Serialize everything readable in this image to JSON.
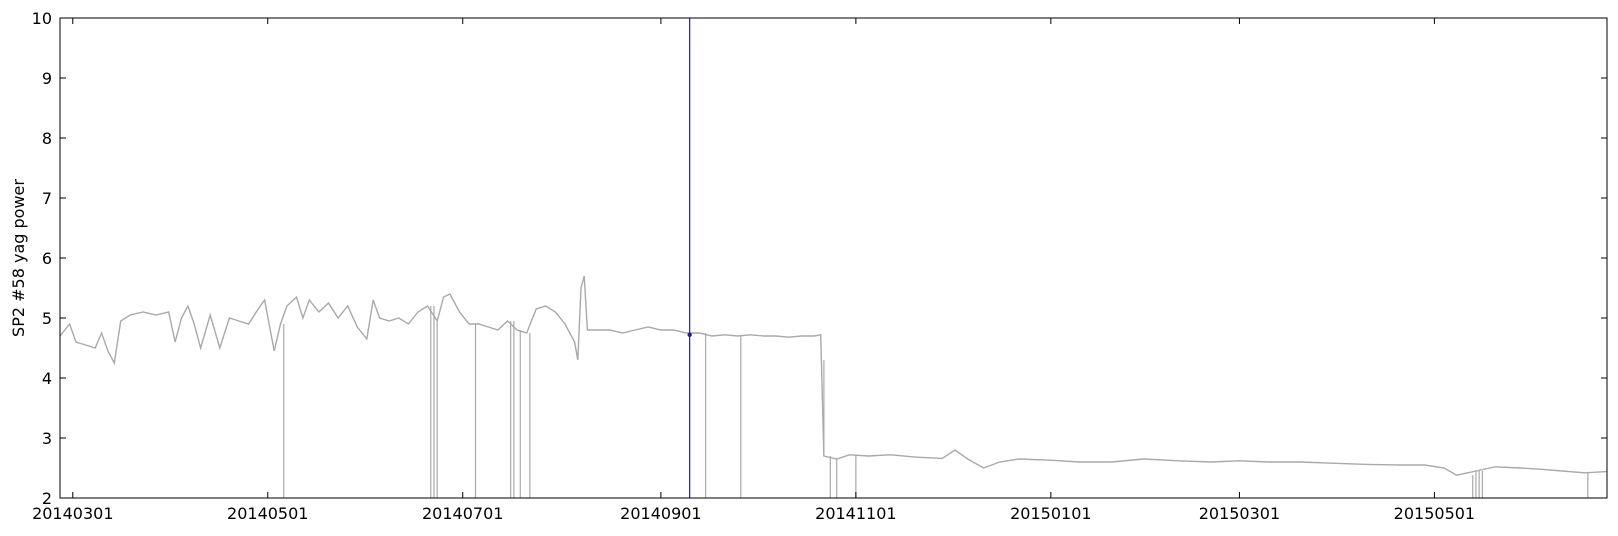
{
  "chart_data": {
    "type": "line",
    "title": "",
    "xlabel": "",
    "ylabel": "SP2 #58 yag power",
    "x_ticks": [
      "20140301",
      "20140501",
      "20140701",
      "20140901",
      "20141101",
      "20150101",
      "20150301",
      "20150501"
    ],
    "xlim": [
      "2014-02-25",
      "2015-06-24"
    ],
    "ylim": [
      2,
      10
    ],
    "y_ticks": [
      2,
      3,
      4,
      5,
      6,
      7,
      8,
      9,
      10
    ],
    "grid": false,
    "series_color": "#a9a9a9",
    "marker_color": "#1f1f9a",
    "series": [
      {
        "values_approx": [
          [
            "2014-02-25",
            4.7
          ],
          [
            "2014-02-28",
            4.9
          ],
          [
            "2014-03-02",
            4.6
          ],
          [
            "2014-03-05",
            4.55
          ],
          [
            "2014-03-08",
            4.5
          ],
          [
            "2014-03-10",
            4.75
          ],
          [
            "2014-03-12",
            4.45
          ],
          [
            "2014-03-14",
            4.25
          ],
          [
            "2014-03-16",
            4.95
          ],
          [
            "2014-03-19",
            5.05
          ],
          [
            "2014-03-23",
            5.1
          ],
          [
            "2014-03-27",
            5.05
          ],
          [
            "2014-03-31",
            5.1
          ],
          [
            "2014-04-02",
            4.6
          ],
          [
            "2014-04-04",
            5.0
          ],
          [
            "2014-04-06",
            5.2
          ],
          [
            "2014-04-08",
            4.9
          ],
          [
            "2014-04-10",
            4.5
          ],
          [
            "2014-04-13",
            5.05
          ],
          [
            "2014-04-16",
            4.5
          ],
          [
            "2014-04-19",
            5.0
          ],
          [
            "2014-04-22",
            4.95
          ],
          [
            "2014-04-25",
            4.9
          ],
          [
            "2014-04-28",
            5.15
          ],
          [
            "2014-04-30",
            5.3
          ],
          [
            "2014-05-03",
            4.45
          ],
          [
            "2014-05-05",
            4.9
          ],
          [
            "2014-05-07",
            5.2
          ],
          [
            "2014-05-10",
            5.35
          ],
          [
            "2014-05-12",
            5.0
          ],
          [
            "2014-05-14",
            5.3
          ],
          [
            "2014-05-17",
            5.1
          ],
          [
            "2014-05-20",
            5.25
          ],
          [
            "2014-05-23",
            5.0
          ],
          [
            "2014-05-26",
            5.2
          ],
          [
            "2014-05-29",
            4.85
          ],
          [
            "2014-06-01",
            4.65
          ],
          [
            "2014-06-03",
            5.3
          ],
          [
            "2014-06-05",
            5.0
          ],
          [
            "2014-06-08",
            4.95
          ],
          [
            "2014-06-11",
            5.0
          ],
          [
            "2014-06-14",
            4.9
          ],
          [
            "2014-06-17",
            5.1
          ],
          [
            "2014-06-20",
            5.2
          ],
          [
            "2014-06-23",
            4.95
          ],
          [
            "2014-06-25",
            5.35
          ],
          [
            "2014-06-27",
            5.4
          ],
          [
            "2014-06-30",
            5.1
          ],
          [
            "2014-07-03",
            4.9
          ],
          [
            "2014-07-06",
            4.9
          ],
          [
            "2014-07-09",
            4.85
          ],
          [
            "2014-07-12",
            4.8
          ],
          [
            "2014-07-15",
            4.95
          ],
          [
            "2014-07-18",
            4.8
          ],
          [
            "2014-07-21",
            4.75
          ],
          [
            "2014-07-24",
            5.15
          ],
          [
            "2014-07-27",
            5.2
          ],
          [
            "2014-07-30",
            5.1
          ],
          [
            "2014-08-02",
            4.9
          ],
          [
            "2014-08-05",
            4.6
          ],
          [
            "2014-08-06",
            4.3
          ],
          [
            "2014-08-07",
            5.5
          ],
          [
            "2014-08-08",
            5.7
          ],
          [
            "2014-08-09",
            4.8
          ],
          [
            "2014-08-12",
            4.8
          ],
          [
            "2014-08-16",
            4.8
          ],
          [
            "2014-08-20",
            4.75
          ],
          [
            "2014-08-24",
            4.8
          ],
          [
            "2014-08-28",
            4.85
          ],
          [
            "2014-09-01",
            4.8
          ],
          [
            "2014-09-05",
            4.8
          ],
          [
            "2014-09-09",
            4.75
          ],
          [
            "2014-09-13",
            4.75
          ],
          [
            "2014-09-17",
            4.7
          ],
          [
            "2014-09-21",
            4.72
          ],
          [
            "2014-09-25",
            4.7
          ],
          [
            "2014-09-29",
            4.72
          ],
          [
            "2014-10-03",
            4.7
          ],
          [
            "2014-10-07",
            4.7
          ],
          [
            "2014-10-11",
            4.68
          ],
          [
            "2014-10-15",
            4.7
          ],
          [
            "2014-10-19",
            4.7
          ],
          [
            "2014-10-21",
            4.72
          ],
          [
            "2014-10-22",
            2.7
          ],
          [
            "2014-10-26",
            2.65
          ],
          [
            "2014-10-30",
            2.72
          ],
          [
            "2014-11-05",
            2.7
          ],
          [
            "2014-11-12",
            2.72
          ],
          [
            "2014-11-20",
            2.68
          ],
          [
            "2014-11-28",
            2.66
          ],
          [
            "2014-12-02",
            2.8
          ],
          [
            "2014-12-06",
            2.65
          ],
          [
            "2014-12-11",
            2.5
          ],
          [
            "2014-12-16",
            2.6
          ],
          [
            "2014-12-22",
            2.65
          ],
          [
            "2015-01-01",
            2.63
          ],
          [
            "2015-01-10",
            2.6
          ],
          [
            "2015-01-20",
            2.6
          ],
          [
            "2015-01-30",
            2.65
          ],
          [
            "2015-02-10",
            2.62
          ],
          [
            "2015-02-20",
            2.6
          ],
          [
            "2015-03-01",
            2.62
          ],
          [
            "2015-03-10",
            2.6
          ],
          [
            "2015-03-20",
            2.6
          ],
          [
            "2015-03-30",
            2.58
          ],
          [
            "2015-04-10",
            2.56
          ],
          [
            "2015-04-20",
            2.55
          ],
          [
            "2015-04-28",
            2.55
          ],
          [
            "2015-05-04",
            2.5
          ],
          [
            "2015-05-08",
            2.38
          ],
          [
            "2015-05-14",
            2.45
          ],
          [
            "2015-05-20",
            2.52
          ],
          [
            "2015-05-28",
            2.5
          ],
          [
            "2015-06-03",
            2.48
          ],
          [
            "2015-06-10",
            2.45
          ],
          [
            "2015-06-17",
            2.42
          ],
          [
            "2015-06-24",
            2.44
          ]
        ]
      }
    ],
    "dropouts_approx": [
      [
        "2014-05-06",
        2.0
      ],
      [
        "2014-06-21",
        2.0
      ],
      [
        "2014-06-22",
        2.0
      ],
      [
        "2014-06-23",
        2.0
      ],
      [
        "2014-07-05",
        2.0
      ],
      [
        "2014-07-16",
        2.0
      ],
      [
        "2014-07-17",
        2.0
      ],
      [
        "2014-07-19",
        2.0
      ],
      [
        "2014-07-22",
        2.0
      ],
      [
        "2014-09-15",
        2.0
      ],
      [
        "2014-09-26",
        2.0
      ],
      [
        "2014-10-22",
        4.3
      ],
      [
        "2014-10-24",
        2.0
      ],
      [
        "2014-10-26",
        2.0
      ],
      [
        "2014-11-01",
        2.0
      ],
      [
        "2015-05-13",
        2.0
      ],
      [
        "2015-05-14",
        2.0
      ],
      [
        "2015-05-15",
        2.0
      ],
      [
        "2015-05-16",
        2.0
      ],
      [
        "2015-06-18",
        2.0
      ]
    ],
    "vertical_marker_x": "2014-09-10",
    "marker_point": [
      "2014-09-10",
      4.72
    ]
  }
}
